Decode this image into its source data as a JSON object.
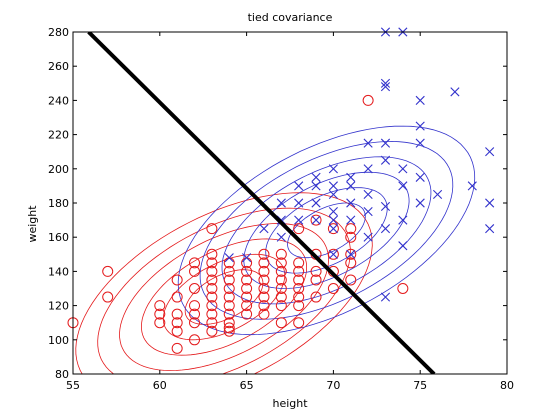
{
  "chart_data": {
    "type": "scatter",
    "title": "tied covariance",
    "xlabel": "height",
    "ylabel": "weight",
    "xlim": [
      55,
      80
    ],
    "ylim": [
      80,
      280
    ],
    "xticks": [
      "55",
      "60",
      "65",
      "70",
      "75",
      "80"
    ],
    "yticks": [
      "80",
      "100",
      "120",
      "140",
      "160",
      "180",
      "200",
      "220",
      "240",
      "260",
      "280"
    ],
    "grid": false,
    "series": [
      {
        "marker": "circle",
        "color": "#e41a1c",
        "points": [
          [
            55,
            110
          ],
          [
            57,
            140
          ],
          [
            57,
            125
          ],
          [
            60,
            115
          ],
          [
            60,
            110
          ],
          [
            60,
            120
          ],
          [
            61,
            95
          ],
          [
            61,
            105
          ],
          [
            61,
            110
          ],
          [
            61,
            115
          ],
          [
            61,
            125
          ],
          [
            61,
            135
          ],
          [
            62,
            100
          ],
          [
            62,
            110
          ],
          [
            62,
            115
          ],
          [
            62,
            120
          ],
          [
            62,
            130
          ],
          [
            62,
            140
          ],
          [
            62,
            145
          ],
          [
            63,
            105
          ],
          [
            63,
            110
          ],
          [
            63,
            115
          ],
          [
            63,
            120
          ],
          [
            63,
            125
          ],
          [
            63,
            130
          ],
          [
            63,
            135
          ],
          [
            63,
            140
          ],
          [
            63,
            145
          ],
          [
            63,
            150
          ],
          [
            63,
            165
          ],
          [
            64,
            105
          ],
          [
            64,
            107
          ],
          [
            64,
            110
          ],
          [
            64,
            115
          ],
          [
            64,
            120
          ],
          [
            64,
            125
          ],
          [
            64,
            130
          ],
          [
            64,
            135
          ],
          [
            64,
            140
          ],
          [
            64,
            145
          ],
          [
            65,
            115
          ],
          [
            65,
            120
          ],
          [
            65,
            125
          ],
          [
            65,
            130
          ],
          [
            65,
            135
          ],
          [
            65,
            140
          ],
          [
            65,
            145
          ],
          [
            66,
            115
          ],
          [
            66,
            120
          ],
          [
            66,
            125
          ],
          [
            66,
            130
          ],
          [
            66,
            135
          ],
          [
            66,
            140
          ],
          [
            66,
            145
          ],
          [
            66,
            150
          ],
          [
            67,
            110
          ],
          [
            67,
            120
          ],
          [
            67,
            125
          ],
          [
            67,
            130
          ],
          [
            67,
            135
          ],
          [
            67,
            140
          ],
          [
            67,
            145
          ],
          [
            67,
            150
          ],
          [
            68,
            110
          ],
          [
            68,
            120
          ],
          [
            68,
            125
          ],
          [
            68,
            130
          ],
          [
            68,
            135
          ],
          [
            68,
            140
          ],
          [
            68,
            145
          ],
          [
            68,
            165
          ],
          [
            69,
            125
          ],
          [
            69,
            135
          ],
          [
            69,
            140
          ],
          [
            69,
            150
          ],
          [
            69,
            170
          ],
          [
            70,
            130
          ],
          [
            70,
            140
          ],
          [
            70,
            150
          ],
          [
            70,
            165
          ],
          [
            71,
            135
          ],
          [
            71,
            145
          ],
          [
            71,
            150
          ],
          [
            71,
            160
          ],
          [
            71,
            165
          ],
          [
            72,
            240
          ],
          [
            74,
            130
          ]
        ]
      },
      {
        "marker": "x",
        "color": "#3333cc",
        "points": [
          [
            64,
            148
          ],
          [
            65,
            148
          ],
          [
            66,
            165
          ],
          [
            67,
            160
          ],
          [
            67,
            170
          ],
          [
            67,
            180
          ],
          [
            68,
            170
          ],
          [
            68,
            180
          ],
          [
            68,
            190
          ],
          [
            69,
            170
          ],
          [
            69,
            180
          ],
          [
            69,
            190
          ],
          [
            69,
            195
          ],
          [
            70,
            150
          ],
          [
            70,
            165
          ],
          [
            70,
            170
          ],
          [
            70,
            175
          ],
          [
            70,
            185
          ],
          [
            70,
            190
          ],
          [
            70,
            200
          ],
          [
            71,
            150
          ],
          [
            71,
            170
          ],
          [
            71,
            180
          ],
          [
            71,
            190
          ],
          [
            71,
            195
          ],
          [
            72,
            160
          ],
          [
            72,
            175
          ],
          [
            72,
            185
          ],
          [
            72,
            200
          ],
          [
            72,
            215
          ],
          [
            73,
            125
          ],
          [
            73,
            165
          ],
          [
            73,
            178
          ],
          [
            73,
            205
          ],
          [
            73,
            215
          ],
          [
            73,
            248
          ],
          [
            73,
            250
          ],
          [
            73,
            280
          ],
          [
            74,
            155
          ],
          [
            74,
            170
          ],
          [
            74,
            190
          ],
          [
            74,
            200
          ],
          [
            74,
            280
          ],
          [
            75,
            180
          ],
          [
            75,
            195
          ],
          [
            75,
            215
          ],
          [
            75,
            225
          ],
          [
            75,
            240
          ],
          [
            76,
            185
          ],
          [
            77,
            245
          ],
          [
            78,
            190
          ],
          [
            79,
            165
          ],
          [
            79,
            180
          ],
          [
            79,
            210
          ]
        ]
      }
    ],
    "gaussians": [
      {
        "color": "#e41a1c",
        "mean": [
          63.7,
          125
        ],
        "cov": [
          [
            7.84,
            28.56
          ],
          [
            28.56,
            400
          ]
        ],
        "levels": [
          0.8,
          1.25,
          1.7,
          2.15,
          2.6,
          3.05
        ]
      },
      {
        "color": "#3333cc",
        "mean": [
          69.6,
          164
        ],
        "cov": [
          [
            7.84,
            28.56
          ],
          [
            28.56,
            400
          ]
        ],
        "levels": [
          0.8,
          1.25,
          1.7,
          2.15,
          2.6,
          3.05
        ]
      }
    ],
    "boundary": {
      "color": "#000000",
      "points": [
        [
          55.9,
          280
        ],
        [
          75.8,
          80
        ]
      ]
    }
  }
}
